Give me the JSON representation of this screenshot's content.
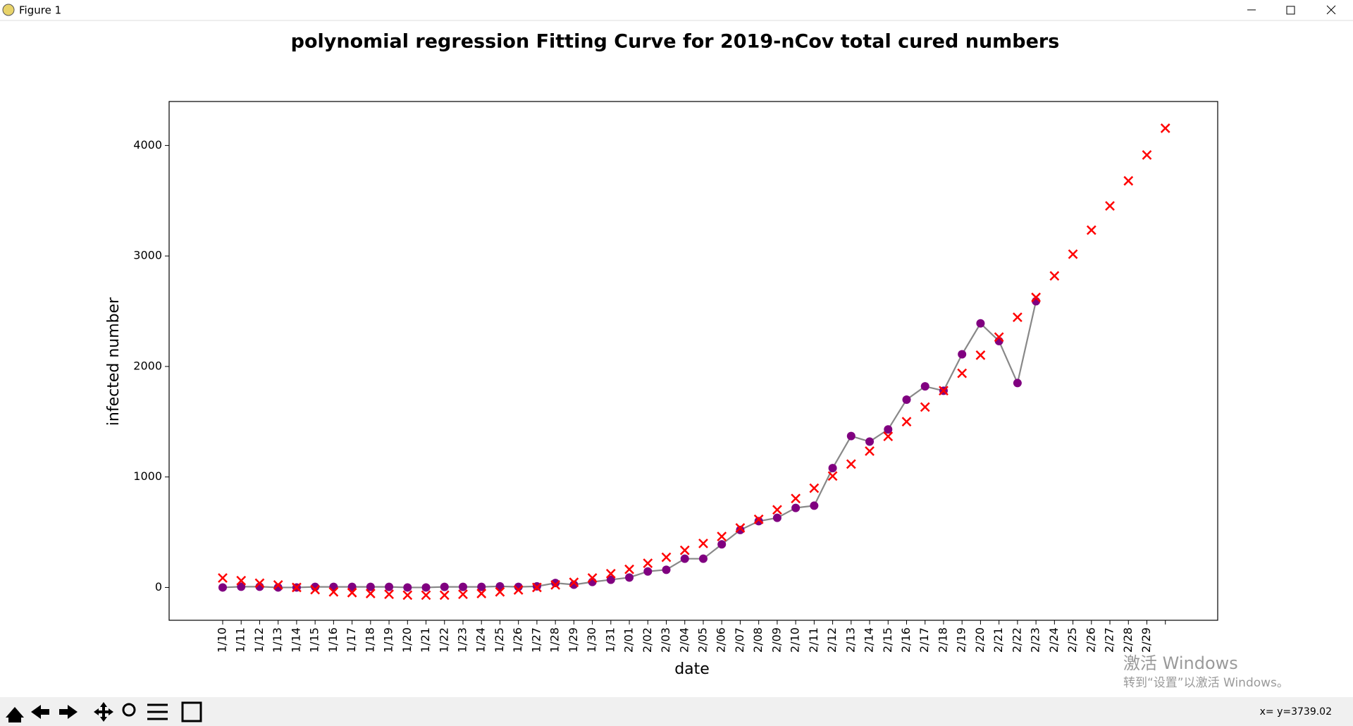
{
  "window": {
    "title": "Figure 1",
    "status": "x= y=3739.02",
    "watermark": [
      "激活 Windows",
      "转到“设置”以激活 Windows。"
    ]
  },
  "chart_data": {
    "type": "scatter",
    "title": "polynomial regression Fitting Curve for 2019-nCov total cured numbers",
    "x_label": "date",
    "y_label": "infected number",
    "categories": [
      "1/10",
      "1/11",
      "1/12",
      "1/13",
      "1/14",
      "1/15",
      "1/16",
      "1/17",
      "1/18",
      "1/19",
      "1/20",
      "1/21",
      "1/22",
      "1/23",
      "1/24",
      "1/25",
      "1/26",
      "1/27",
      "1/28",
      "1/29",
      "1/30",
      "1/31",
      "2/01",
      "2/02",
      "2/03",
      "2/04",
      "2/05",
      "2/06",
      "2/07",
      "2/08",
      "2/09",
      "2/10",
      "2/11",
      "2/12",
      "2/13",
      "2/14",
      "2/15",
      "2/16",
      "2/17",
      "2/18",
      "2/19",
      "2/20",
      "2/21",
      "2/22",
      "2/23",
      "2/24",
      "2/25",
      "2/26",
      "2/27",
      "2/28",
      "2/29",
      null
    ],
    "series": [
      {
        "color": "#800080",
        "marker": "o",
        "line_color": "#888888",
        "values": [
          0,
          7,
          7,
          0,
          0,
          5,
          5,
          5,
          5,
          5,
          0,
          0,
          5,
          5,
          5,
          10,
          5,
          10,
          40,
          25,
          50,
          70,
          90,
          145,
          160,
          260,
          260,
          390,
          520,
          600,
          630,
          720,
          740,
          1080,
          1370,
          1320,
          1430,
          1700,
          1820,
          1780,
          2110,
          2390,
          2230,
          1850,
          2590,
          null,
          null,
          null,
          null,
          null,
          null,
          null
        ]
      },
      {
        "color": "#ff0000",
        "marker": "x",
        "values": [
          86,
          62,
          39,
          23,
          0,
          -20,
          -40,
          -47,
          -55,
          -62,
          -70,
          -70,
          -70,
          -62,
          -55,
          -40,
          -23,
          0,
          23,
          47,
          86,
          125,
          164,
          219,
          273,
          336,
          398,
          461,
          539,
          617,
          703,
          805,
          898,
          1008,
          1117,
          1234,
          1367,
          1500,
          1633,
          1781,
          1938,
          2102,
          2266,
          2445,
          2625,
          2820,
          3016,
          3234,
          3453,
          3680,
          3914,
          4156
        ]
      }
    ],
    "ylim": [
      -297,
      4398
    ],
    "yticks": [
      0,
      1000,
      2000,
      3000,
      4000
    ]
  }
}
